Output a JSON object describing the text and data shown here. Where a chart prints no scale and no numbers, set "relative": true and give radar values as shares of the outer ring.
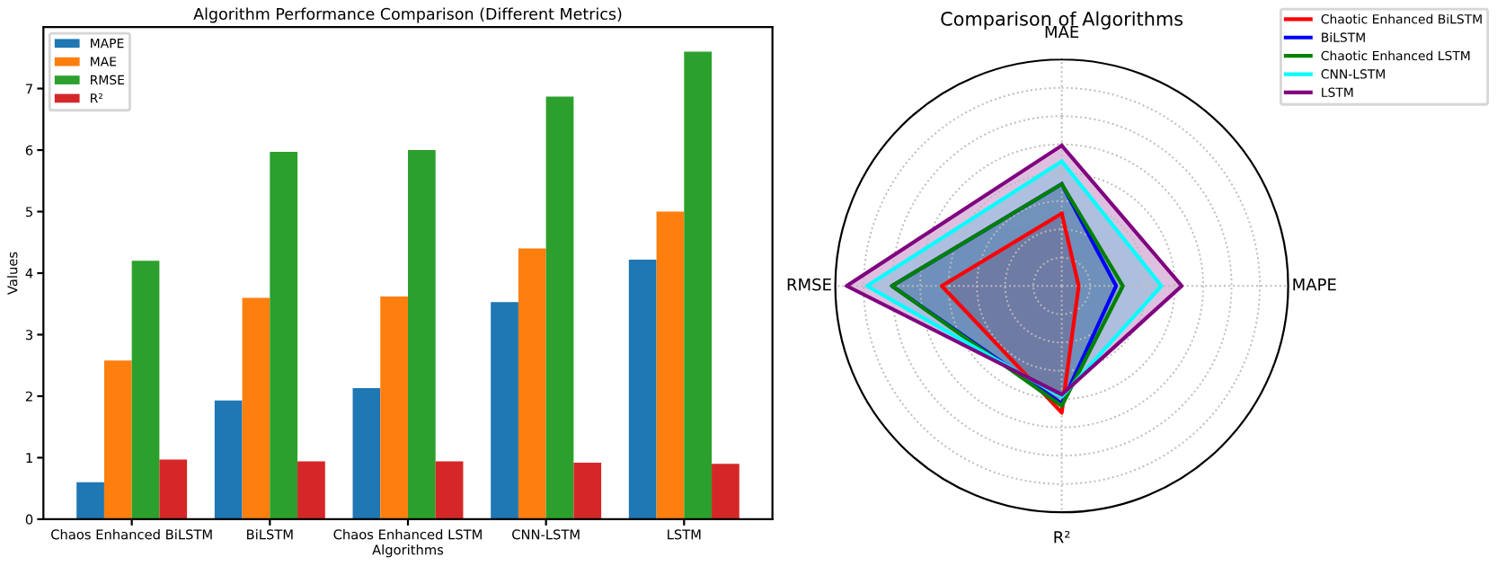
{
  "chart_data": [
    {
      "type": "bar",
      "title": "Algorithm Performance Comparison (Different Metrics)",
      "xlabel": "Algorithms",
      "ylabel": "Values",
      "categories": [
        "Chaos Enhanced BiLSTM",
        "BiLSTM",
        "Chaos Enhanced LSTM",
        "CNN-LSTM",
        "LSTM"
      ],
      "series": [
        {
          "name": "MAPE",
          "color": "#1f77b4",
          "values": [
            0.6,
            1.93,
            2.13,
            3.53,
            4.22
          ]
        },
        {
          "name": "MAE",
          "color": "#ff7f0e",
          "values": [
            2.58,
            3.6,
            3.62,
            4.4,
            5.0
          ]
        },
        {
          "name": "RMSE",
          "color": "#2ca02c",
          "values": [
            4.2,
            5.97,
            6.0,
            6.87,
            7.6
          ]
        },
        {
          "name": "R²",
          "color": "#d62728",
          "values": [
            0.97,
            0.94,
            0.94,
            0.92,
            0.9
          ]
        }
      ],
      "ylim": [
        0,
        8.0
      ],
      "yticks": [
        0,
        1,
        2,
        3,
        4,
        5,
        6,
        7
      ],
      "legend": "top left",
      "grid": false
    },
    {
      "type": "radar",
      "title": "Comparison of Algorithms",
      "relative": true,
      "categories": [
        "MAE",
        "MAPE",
        "R²",
        "RMSE"
      ],
      "series": [
        {
          "name": "Chaotic Enhanced BiLSTM",
          "color": "#ff0000",
          "values": [
            0.32,
            0.075,
            0.56,
            0.53
          ]
        },
        {
          "name": "BiLSTM",
          "color": "#0000ff",
          "values": [
            0.45,
            0.24,
            0.52,
            0.75
          ]
        },
        {
          "name": "Chaotic Enhanced LSTM",
          "color": "#008000",
          "values": [
            0.45,
            0.27,
            0.53,
            0.75
          ]
        },
        {
          "name": "CNN-LSTM",
          "color": "#00ffff",
          "values": [
            0.55,
            0.44,
            0.49,
            0.86
          ]
        },
        {
          "name": "LSTM",
          "color": "#800080",
          "values": [
            0.62,
            0.53,
            0.48,
            0.95
          ]
        }
      ],
      "legend": "top right",
      "grid": true
    }
  ]
}
